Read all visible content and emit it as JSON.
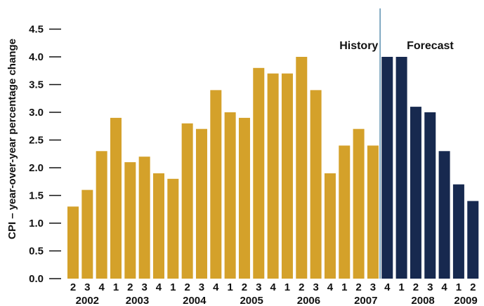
{
  "chart_data": {
    "type": "bar",
    "ylabel": "CPI – year-over-year percentage change",
    "xlabel": "",
    "ylim": [
      0,
      4.5
    ],
    "yticks": [
      0.0,
      0.5,
      1.0,
      1.5,
      2.0,
      2.5,
      3.0,
      3.5,
      4.0,
      4.5
    ],
    "ytick_labels": [
      "0.0",
      "0.5",
      "1.0",
      "1.5",
      "2.0",
      "2.5",
      "3.0",
      "3.5",
      "4.0",
      "4.5"
    ],
    "grid": false,
    "colors": {
      "history": "#D4A12A",
      "forecast": "#17294F",
      "divider": "#5B8FB0"
    },
    "quarter_labels": [
      "2",
      "3",
      "4",
      "1",
      "2",
      "3",
      "4",
      "1",
      "2",
      "3",
      "4",
      "1",
      "2",
      "3",
      "4",
      "1",
      "2",
      "3",
      "4",
      "1",
      "2",
      "3",
      "4",
      "1",
      "2",
      "3",
      "4",
      "1",
      "2"
    ],
    "year_labels": [
      {
        "label": "2002",
        "center_index": 1
      },
      {
        "label": "2003",
        "center_index": 4.5
      },
      {
        "label": "2004",
        "center_index": 8.5
      },
      {
        "label": "2005",
        "center_index": 12.5
      },
      {
        "label": "2006",
        "center_index": 16.5
      },
      {
        "label": "2007",
        "center_index": 20.5
      },
      {
        "label": "2008",
        "center_index": 24.5
      },
      {
        "label": "2009",
        "center_index": 27.5
      }
    ],
    "series": [
      {
        "values": [
          1.3,
          1.6,
          2.3,
          2.9,
          2.1,
          2.2,
          1.9,
          1.8,
          2.8,
          2.7,
          3.4,
          3.0,
          2.9,
          3.8,
          3.7,
          3.7,
          4.0,
          3.4,
          1.9,
          2.4,
          2.7,
          2.4,
          null,
          null,
          null,
          null,
          null,
          null,
          null
        ]
      },
      {
        "values": [
          null,
          null,
          null,
          null,
          null,
          null,
          null,
          null,
          null,
          null,
          null,
          null,
          null,
          null,
          null,
          null,
          null,
          null,
          null,
          null,
          null,
          null,
          4.0,
          4.0,
          3.1,
          3.0,
          2.3,
          1.7,
          1.4
        ]
      }
    ],
    "annotations": [
      {
        "text": "History",
        "anchor_index": 20.5,
        "y": 4.2
      },
      {
        "text": "Forecast",
        "anchor_index": 25.5,
        "y": 4.2
      }
    ],
    "divider_after_index": 21
  }
}
